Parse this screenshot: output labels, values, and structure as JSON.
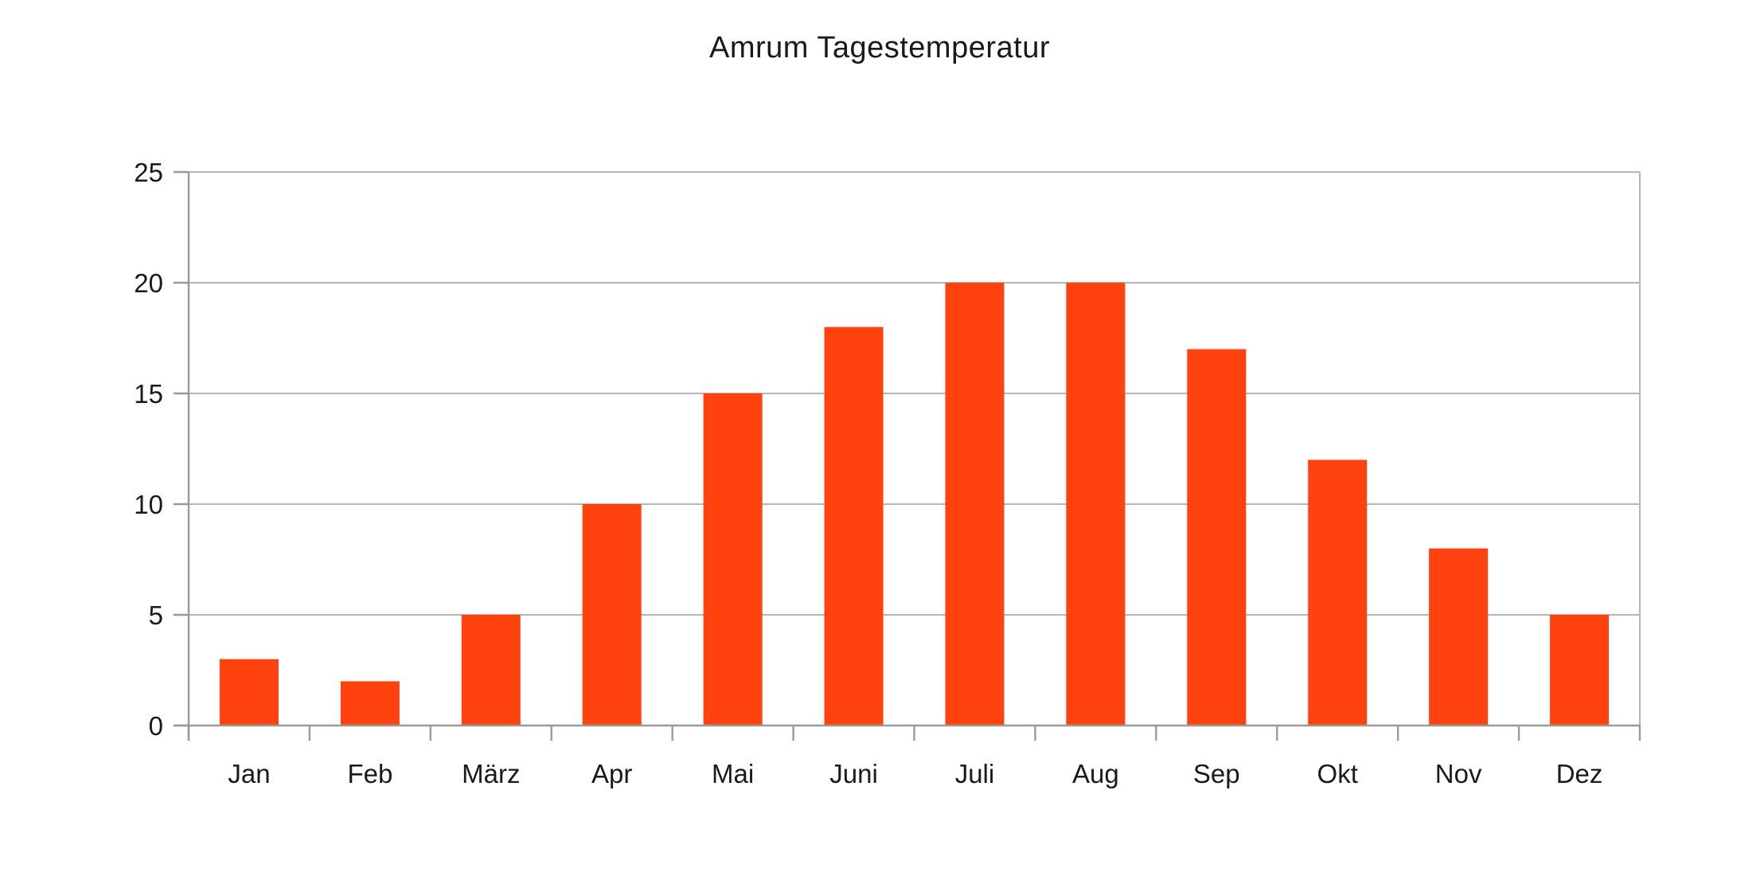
{
  "chart_data": {
    "type": "bar",
    "title": "Amrum Tagestemperatur",
    "categories": [
      "Jan",
      "Feb",
      "März",
      "Apr",
      "Mai",
      "Juni",
      "Juli",
      "Aug",
      "Sep",
      "Okt",
      "Nov",
      "Dez"
    ],
    "values": [
      3,
      2,
      5,
      10,
      15,
      18,
      20,
      20,
      17,
      12,
      8,
      5
    ],
    "xlabel": "",
    "ylabel": "",
    "ylim": [
      0,
      25
    ],
    "ytick_step": 5,
    "ytick_labels": [
      "0",
      "5",
      "10",
      "15",
      "20",
      "25"
    ],
    "grid": "horizontal-only",
    "legend_position": "none",
    "colors": {
      "bar": "#ff420e",
      "gridline": "#b6b6b6",
      "axis": "#9a9a9a",
      "text": "#1a1a1a",
      "background": "#ffffff"
    }
  }
}
